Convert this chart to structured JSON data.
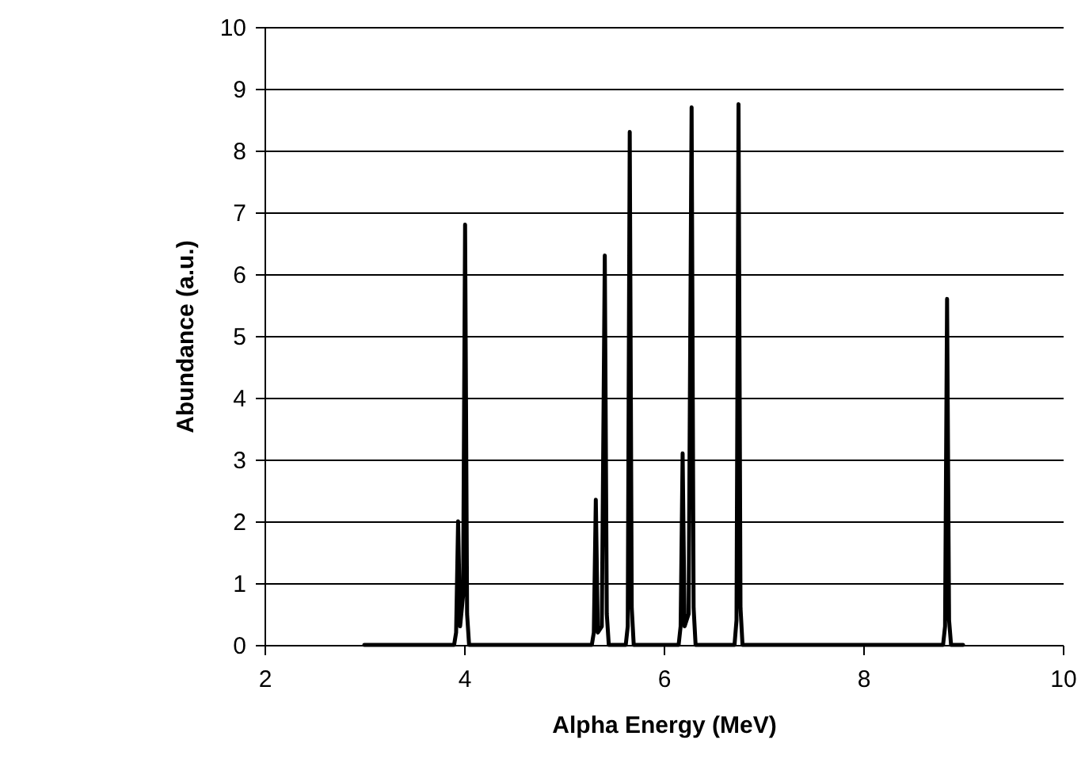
{
  "chart_data": {
    "type": "line",
    "xlabel": "Alpha Energy (MeV)",
    "ylabel": "Abundance (a.u.)",
    "xlim": [
      2,
      10
    ],
    "xticks": [
      2,
      4,
      6,
      8,
      10
    ],
    "ylim": [
      0,
      10
    ],
    "yticks": [
      0,
      1,
      2,
      3,
      4,
      5,
      6,
      7,
      8,
      9,
      10
    ],
    "grid": "y",
    "marker": "none",
    "x": [
      3.0,
      3.9,
      3.92,
      3.94,
      3.96,
      3.99,
      4.01,
      4.03,
      4.05,
      5.28,
      5.3,
      5.32,
      5.34,
      5.38,
      5.41,
      5.43,
      5.45,
      5.62,
      5.64,
      5.66,
      5.68,
      5.7,
      6.15,
      6.17,
      6.19,
      6.21,
      6.25,
      6.28,
      6.3,
      6.32,
      6.71,
      6.73,
      6.75,
      6.77,
      6.79,
      8.8,
      8.82,
      8.84,
      8.86,
      8.88,
      9.0
    ],
    "series": [
      {
        "color": "#000000",
        "values": [
          0,
          0,
          0.2,
          2.0,
          0.3,
          0.8,
          6.8,
          0.5,
          0,
          0,
          0.2,
          2.35,
          0.2,
          0.3,
          6.3,
          0.5,
          0,
          0,
          0.3,
          8.3,
          0.6,
          0,
          0,
          0.3,
          3.1,
          0.3,
          0.5,
          8.7,
          0.6,
          0,
          0,
          0.4,
          8.75,
          0.6,
          0,
          0,
          0.3,
          5.6,
          0.4,
          0,
          0
        ]
      }
    ]
  }
}
